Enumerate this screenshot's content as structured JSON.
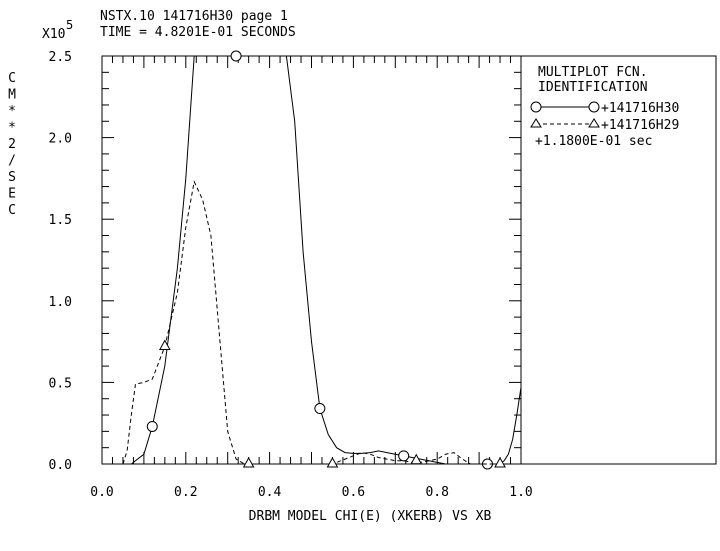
{
  "header": {
    "line1": "NSTX.10 141716H30 page 1",
    "line2": "TIME = 4.8201E-01 SECONDS"
  },
  "legend": {
    "title1": "MULTIPLOT FCN.",
    "title2": "IDENTIFICATION",
    "entries": [
      {
        "label": "+141716H30",
        "marker": "circle",
        "style": "solid"
      },
      {
        "label": "+141716H29",
        "marker": "triangle",
        "style": "dashed"
      }
    ],
    "note": "+1.1800E-01 sec"
  },
  "chart_data": {
    "type": "line",
    "xlabel": "DRBM MODEL CHI(E) (XKERB) VS XB",
    "ylabel": "CM**2/SEC",
    "y_multiplier_base": "X10",
    "y_multiplier_exp": "5",
    "xlim": [
      0.0,
      1.0
    ],
    "ylim": [
      0.0,
      2.5
    ],
    "x_ticks": [
      "0.0",
      "0.2",
      "0.4",
      "0.6",
      "0.8",
      "1.0"
    ],
    "y_ticks": [
      "0.0",
      "0.5",
      "1.0",
      "1.5",
      "2.0",
      "2.5"
    ],
    "grid": false,
    "legend_position": "right",
    "series": [
      {
        "name": "+141716H30",
        "style": "solid",
        "marker": "circle",
        "x": [
          0.0,
          0.05,
          0.07,
          0.1,
          0.12,
          0.15,
          0.18,
          0.2,
          0.22,
          0.25,
          0.28,
          0.3,
          0.32,
          0.34,
          0.36,
          0.38,
          0.4,
          0.42,
          0.44,
          0.46,
          0.48,
          0.5,
          0.52,
          0.54,
          0.56,
          0.58,
          0.6,
          0.62,
          0.64,
          0.66,
          0.68,
          0.7,
          0.72,
          0.74,
          0.76,
          0.78,
          0.8,
          0.82,
          0.84,
          0.86,
          0.88,
          0.9,
          0.92,
          0.94,
          0.95,
          0.96,
          0.97,
          0.98,
          0.99,
          1.0
        ],
        "y": [
          0.0,
          0.0,
          0.0,
          0.06,
          0.23,
          0.6,
          1.2,
          1.75,
          2.5,
          2.5,
          2.5,
          2.5,
          2.5,
          2.5,
          2.5,
          2.5,
          2.5,
          2.5,
          2.5,
          2.1,
          1.3,
          0.75,
          0.34,
          0.18,
          0.1,
          0.07,
          0.065,
          0.065,
          0.07,
          0.08,
          0.07,
          0.06,
          0.05,
          0.04,
          0.03,
          0.02,
          0.01,
          0.0,
          0.0,
          0.0,
          0.0,
          0.0,
          0.0,
          0.0,
          0.0,
          0.02,
          0.06,
          0.15,
          0.3,
          0.47
        ],
        "markers_x": [
          0.12,
          0.32,
          0.52,
          0.72,
          0.92
        ],
        "markers_y": [
          0.23,
          2.5,
          0.34,
          0.05,
          0.0
        ]
      },
      {
        "name": "+141716H29",
        "style": "dashed",
        "marker": "triangle",
        "x": [
          0.0,
          0.05,
          0.06,
          0.07,
          0.08,
          0.1,
          0.12,
          0.15,
          0.18,
          0.2,
          0.22,
          0.24,
          0.26,
          0.28,
          0.3,
          0.32,
          0.34,
          0.36,
          0.38,
          0.4,
          0.42,
          0.44,
          0.46,
          0.48,
          0.5,
          0.52,
          0.54,
          0.56,
          0.58,
          0.6,
          0.62,
          0.64,
          0.66,
          0.68,
          0.7,
          0.72,
          0.74,
          0.76,
          0.78,
          0.8,
          0.82,
          0.84,
          0.86,
          0.88,
          0.9,
          0.92,
          0.94,
          0.95,
          0.96,
          0.97
        ],
        "y": [
          0.0,
          0.0,
          0.08,
          0.3,
          0.49,
          0.5,
          0.52,
          0.72,
          1.05,
          1.45,
          1.73,
          1.62,
          1.4,
          0.8,
          0.2,
          0.03,
          0.0,
          0.0,
          0.0,
          0.0,
          0.0,
          0.0,
          0.0,
          0.0,
          0.0,
          0.0,
          0.0,
          0.01,
          0.03,
          0.05,
          0.07,
          0.06,
          0.04,
          0.03,
          0.02,
          0.02,
          0.01,
          0.01,
          0.02,
          0.03,
          0.06,
          0.07,
          0.03,
          0.0,
          0.0,
          0.0,
          0.0,
          0.0,
          0.0,
          0.0
        ],
        "markers_x": [
          0.15,
          0.35,
          0.55,
          0.75,
          0.95
        ],
        "markers_y": [
          0.72,
          0.0,
          0.0,
          0.02,
          0.0
        ]
      }
    ]
  }
}
